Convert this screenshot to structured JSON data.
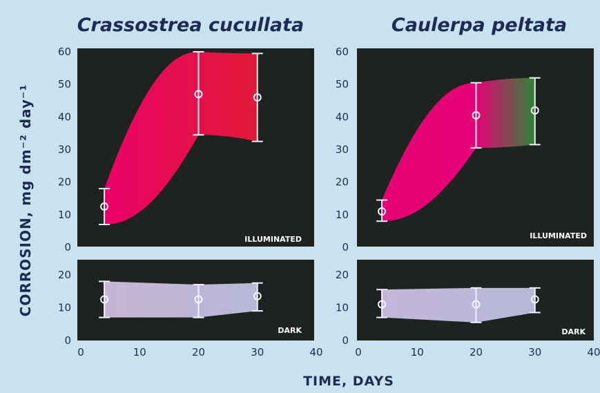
{
  "chart_data": [
    {
      "type": "area",
      "title": "Crassostrea cucullata",
      "condition_label": "ILLUMINATED",
      "ylabel": "CORROSION, mg dm⁻² day⁻¹",
      "xlabel": "TIME, DAYS",
      "xlim": [
        0,
        40
      ],
      "ylim": [
        0,
        60
      ],
      "x_ticks": [
        "0",
        "10",
        "20",
        "30",
        "40"
      ],
      "y_ticks": [
        "0",
        "10",
        "20",
        "30",
        "40",
        "50",
        "60"
      ],
      "x": [
        4,
        20,
        30
      ],
      "mean": [
        12.5,
        47,
        46
      ],
      "lower": [
        7,
        34.5,
        32.5
      ],
      "upper": [
        18,
        60,
        59.5
      ],
      "band_colors": [
        "#f5006b",
        "#ec1a3a"
      ]
    },
    {
      "type": "area",
      "title": "Caulerpa peltata",
      "condition_label": "ILLUMINATED",
      "xlim": [
        0,
        40
      ],
      "ylim": [
        0,
        60
      ],
      "x_ticks": [
        "0",
        "10",
        "20",
        "30",
        "40"
      ],
      "y_ticks": [
        "0",
        "10",
        "20",
        "30",
        "40",
        "50",
        "60"
      ],
      "x": [
        4,
        20,
        30
      ],
      "mean": [
        11,
        40.5,
        42
      ],
      "lower": [
        8,
        30.5,
        31.5
      ],
      "upper": [
        14.5,
        50.5,
        52
      ],
      "band_colors": [
        "#f0007a",
        "#2e8a37"
      ]
    },
    {
      "type": "area",
      "title": "",
      "condition_label": "DARK",
      "xlim": [
        0,
        40
      ],
      "ylim": [
        0,
        25
      ],
      "y_ticks": [
        "0",
        "10",
        "20"
      ],
      "x": [
        4,
        20,
        30
      ],
      "mean": [
        12.5,
        12.5,
        13.5
      ],
      "lower": [
        7,
        7,
        9
      ],
      "upper": [
        18,
        17,
        17.5
      ],
      "band_colors": [
        "#d9c4ea",
        "#c8c8ea"
      ]
    },
    {
      "type": "area",
      "title": "",
      "condition_label": "DARK",
      "xlim": [
        0,
        40
      ],
      "ylim": [
        0,
        25
      ],
      "y_ticks": [
        "0",
        "10",
        "20"
      ],
      "x": [
        4,
        20,
        30
      ],
      "mean": [
        11,
        11,
        12.5
      ],
      "lower": [
        7,
        5.5,
        8.5
      ],
      "upper": [
        15.5,
        16,
        16
      ],
      "band_colors": [
        "#d6c6ec",
        "#c6c8ec"
      ]
    }
  ]
}
